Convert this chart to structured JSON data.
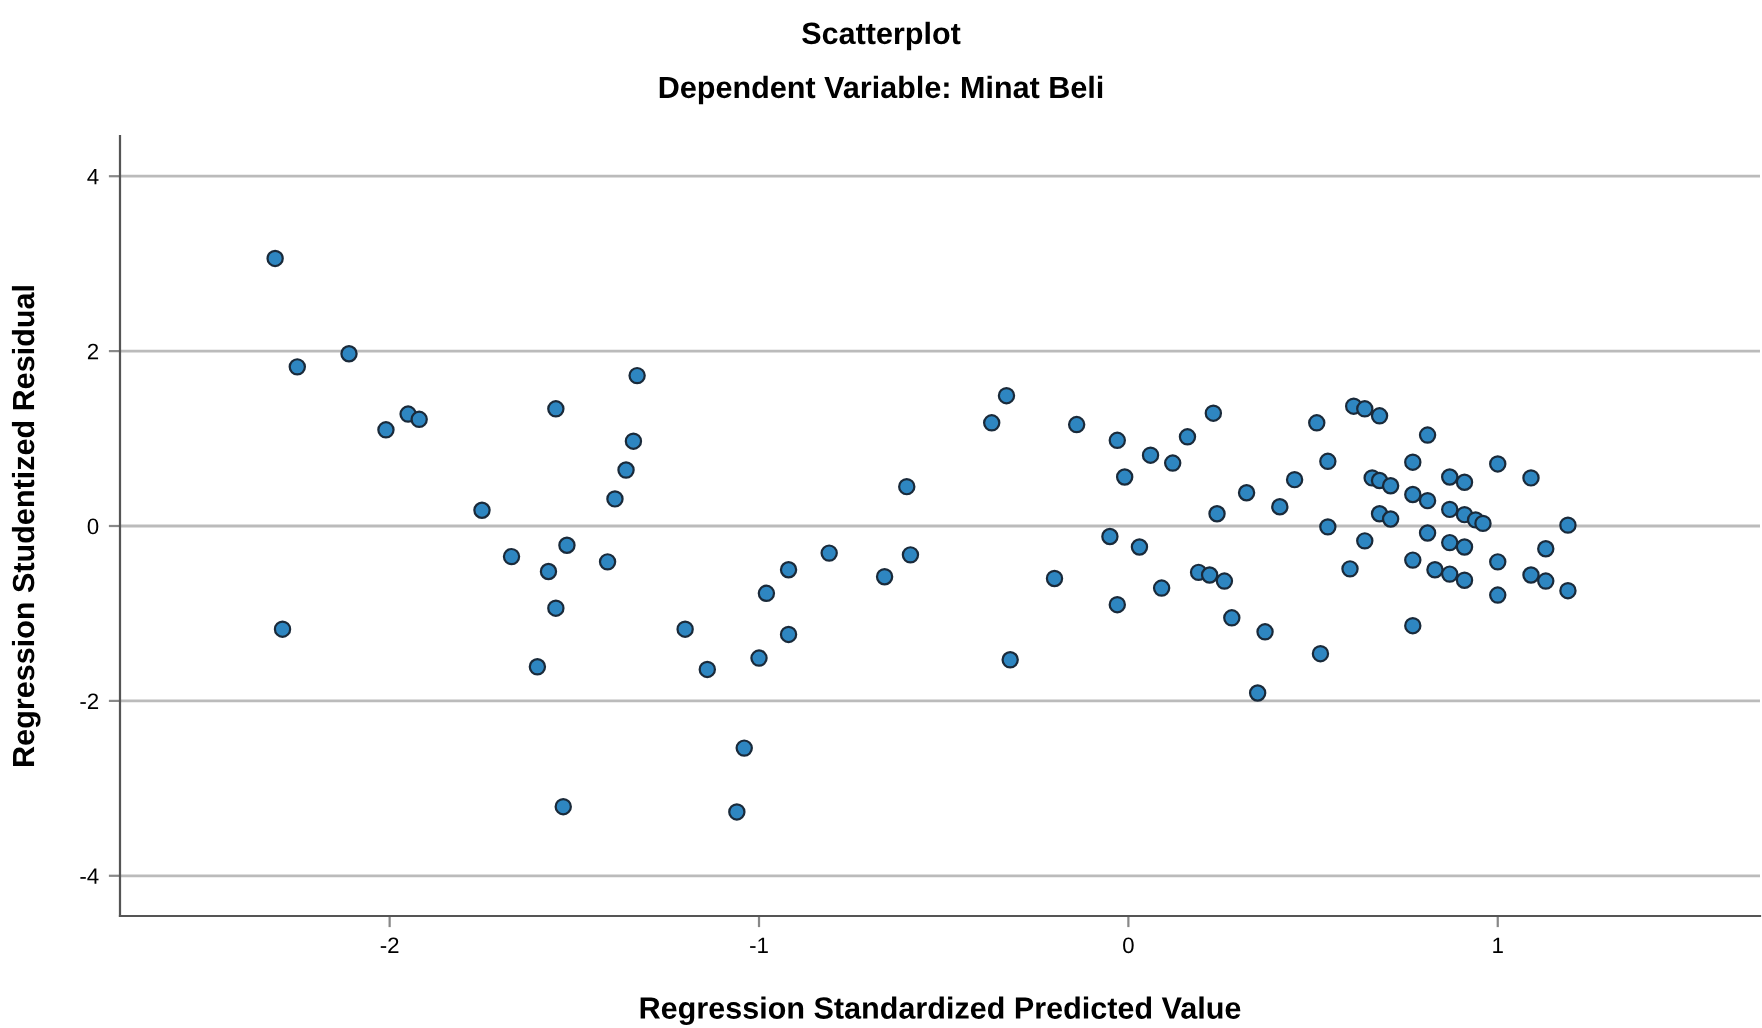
{
  "chart_data": {
    "type": "scatter",
    "title": "Scatterplot",
    "subtitle": "Dependent Variable: Minat Beli",
    "xlabel": "Regression Standardized Predicted Value",
    "ylabel": "Regression Studentized Residual",
    "xlim": [
      -2.73,
      1.71
    ],
    "ylim": [
      -4.46,
      4.46
    ],
    "xticks": [
      -2,
      -1,
      0,
      1
    ],
    "yticks": [
      -4,
      -2,
      0,
      2,
      4
    ],
    "grid": "y",
    "marker": "circle",
    "series": [
      {
        "color": "#2e86c1",
        "x": [
          -2.31,
          -2.25,
          -2.11,
          -2.01,
          -1.95,
          -1.92,
          -1.75,
          -2.29,
          -1.67,
          -1.57,
          -1.52,
          -1.41,
          -1.55,
          -1.6,
          -1.53,
          -1.55,
          -1.33,
          -1.34,
          -1.36,
          -1.39,
          -1.2,
          -1.14,
          -1.04,
          -1.06,
          -0.98,
          -0.92,
          -1.0,
          -0.92,
          -0.81,
          -0.66,
          -0.59,
          -0.6,
          -0.33,
          -0.37,
          -0.14,
          -0.2,
          -0.32,
          -0.03,
          -0.01,
          0.06,
          0.12,
          0.16,
          0.23,
          -0.05,
          0.03,
          -0.03,
          0.09,
          0.24,
          0.32,
          0.41,
          0.45,
          0.19,
          0.22,
          0.26,
          0.28,
          0.37,
          0.35,
          0.52,
          0.51,
          0.54,
          0.54,
          0.6,
          0.64,
          0.61,
          0.64,
          0.68,
          0.66,
          0.68,
          0.71,
          0.68,
          0.71,
          0.81,
          0.77,
          0.77,
          0.81,
          0.81,
          0.77,
          0.77,
          0.87,
          0.91,
          0.87,
          0.91,
          0.94,
          0.96,
          0.87,
          0.91,
          0.83,
          0.87,
          0.91,
          1.0,
          1.0,
          1.0,
          1.09,
          1.13,
          1.09,
          1.13,
          1.19,
          1.19
        ],
        "values": [
          3.06,
          1.82,
          1.97,
          1.1,
          1.28,
          1.22,
          0.18,
          -1.18,
          -0.35,
          -0.52,
          -0.22,
          -0.41,
          -0.94,
          -1.61,
          -3.21,
          1.34,
          1.72,
          0.97,
          0.64,
          0.31,
          -1.18,
          -1.64,
          -2.54,
          -3.27,
          -0.77,
          -0.5,
          -1.51,
          -1.24,
          -0.31,
          -0.58,
          -0.33,
          0.45,
          1.49,
          1.18,
          1.16,
          -0.6,
          -1.53,
          0.98,
          0.56,
          0.81,
          0.72,
          1.02,
          1.29,
          -0.12,
          -0.24,
          -0.9,
          -0.71,
          0.14,
          0.38,
          0.22,
          0.53,
          -0.53,
          -0.56,
          -0.63,
          -1.05,
          -1.21,
          -1.91,
          -1.46,
          1.18,
          0.74,
          -0.01,
          -0.49,
          -0.17,
          1.37,
          1.34,
          1.26,
          0.55,
          0.52,
          0.46,
          0.14,
          0.08,
          1.04,
          0.73,
          0.36,
          0.29,
          -0.08,
          -0.39,
          -1.14,
          0.56,
          0.5,
          0.19,
          0.13,
          0.07,
          0.03,
          -0.19,
          -0.24,
          -0.5,
          -0.55,
          -0.62,
          0.71,
          -0.41,
          -0.79,
          0.55,
          -0.26,
          -0.56,
          -0.63,
          0.01,
          -0.74
        ]
      }
    ]
  }
}
